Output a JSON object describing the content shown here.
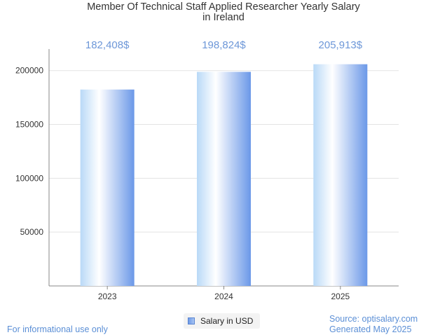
{
  "chart_data": {
    "type": "bar",
    "title_lines": [
      "Member Of Technical Staff Applied Researcher Yearly Salary",
      "in Ireland"
    ],
    "categories": [
      "2023",
      "2024",
      "2025"
    ],
    "series": [
      {
        "name": "Salary in USD",
        "values": [
          182408,
          198824,
          205913
        ]
      }
    ],
    "value_labels": [
      "182,408$",
      "198,824$",
      "205,913$"
    ],
    "y_ticks": [
      50000,
      100000,
      150000,
      200000
    ],
    "ylim": [
      0,
      220000
    ],
    "grid": true,
    "legend_position": "bottom"
  },
  "footer": {
    "left": "For informational use only",
    "source": "Source: optisalary.com",
    "generated": "Generated May 2025"
  },
  "colors": {
    "bar_edge": "#6b98e8",
    "bar_light": "#ffffff",
    "bar_tint": "#b9d9f7",
    "value_label": "#6d97d8",
    "grid": "#e3e3e3",
    "axis": "#888888"
  }
}
